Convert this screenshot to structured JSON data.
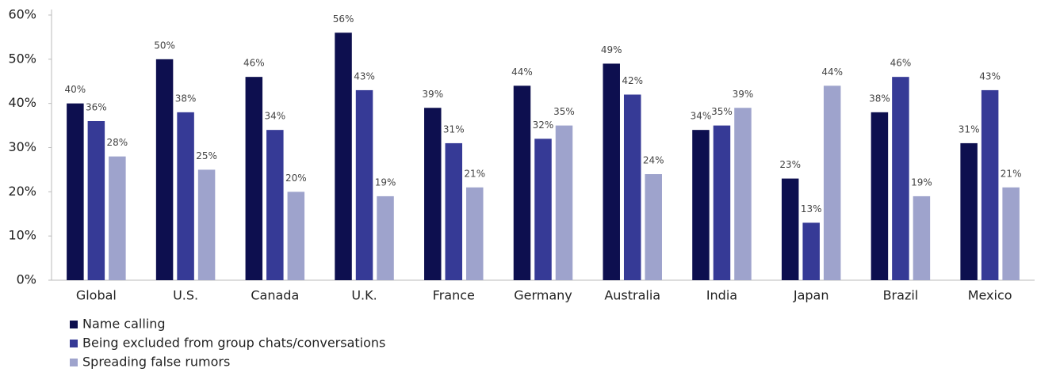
{
  "chart_data": {
    "type": "bar",
    "categories": [
      "Global",
      "U.S.",
      "Canada",
      "U.K.",
      "France",
      "Germany",
      "Australia",
      "India",
      "Japan",
      "Brazil",
      "Mexico"
    ],
    "series": [
      {
        "name": "Name calling",
        "color": "#0d0f4f",
        "values": [
          40,
          50,
          46,
          56,
          39,
          44,
          49,
          34,
          23,
          38,
          31
        ],
        "value_labels": [
          "40%",
          "50%",
          "46%",
          "56%",
          "39%",
          "44%",
          "49%",
          "34%",
          "23%",
          "38%",
          "31%"
        ]
      },
      {
        "name": "Being excluded from group chats/conversations",
        "color": "#363a96",
        "values": [
          36,
          38,
          34,
          43,
          31,
          32,
          42,
          35,
          13,
          46,
          43
        ],
        "value_labels": [
          "36%",
          "38%",
          "34%",
          "43%",
          "31%",
          "32%",
          "42%",
          "35%",
          "13%",
          "46%",
          "43%"
        ]
      },
      {
        "name": "Spreading false rumors",
        "color": "#9ea3cc",
        "values": [
          28,
          25,
          20,
          19,
          21,
          35,
          24,
          39,
          44,
          19,
          21
        ],
        "value_labels": [
          "28%",
          "25%",
          "20%",
          "19%",
          "21%",
          "35%",
          "24%",
          "39%",
          "44%",
          "19%",
          "21%"
        ]
      }
    ],
    "ylim": [
      0,
      60
    ],
    "yticks": [
      {
        "value": 0,
        "label": "0%"
      },
      {
        "value": 10,
        "label": "10%"
      },
      {
        "value": 20,
        "label": "20%"
      },
      {
        "value": 30,
        "label": "30%"
      },
      {
        "value": 40,
        "label": "40%"
      },
      {
        "value": 50,
        "label": "50%"
      },
      {
        "value": 60,
        "label": "60%"
      }
    ],
    "grid": false,
    "legend": "bottom-left"
  }
}
